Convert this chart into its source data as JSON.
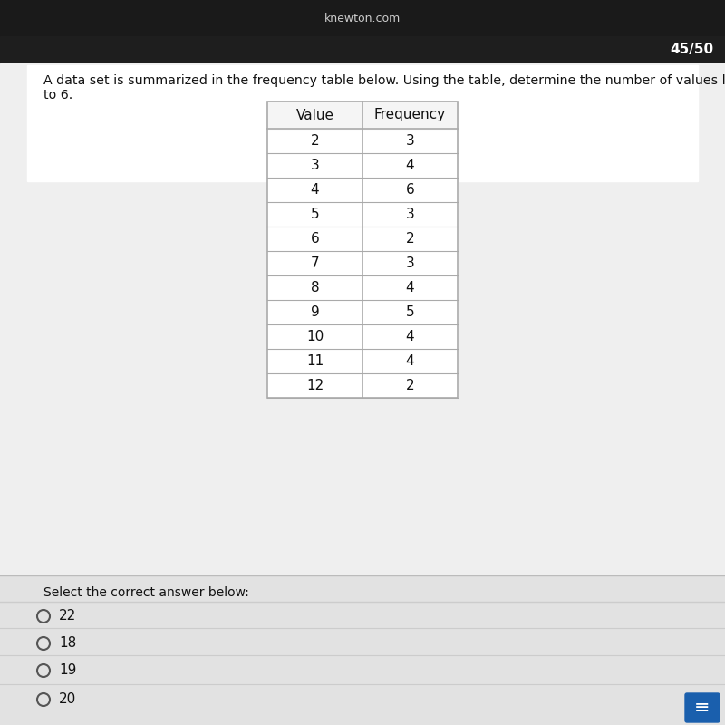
{
  "page_label": "45/50",
  "website": "knewton.com",
  "question_line1": "A data set is summarized in the frequency table below. Using the table, determine the number of values less than or equal",
  "question_line2": "to 6.",
  "table_headers": [
    "Value",
    "Frequency"
  ],
  "table_data": [
    [
      2,
      3
    ],
    [
      3,
      4
    ],
    [
      4,
      6
    ],
    [
      5,
      3
    ],
    [
      6,
      2
    ],
    [
      7,
      3
    ],
    [
      8,
      4
    ],
    [
      9,
      5
    ],
    [
      10,
      4
    ],
    [
      11,
      4
    ],
    [
      12,
      2
    ]
  ],
  "answer_label": "Select the correct answer below:",
  "answers": [
    "22",
    "18",
    "19",
    "20"
  ],
  "bg_outer": "#2a2a2a",
  "bg_top_bar": "#1a1a1a",
  "bg_dark_bar": "#1e1e1e",
  "bg_content": "#efefef",
  "bg_white": "#ffffff",
  "table_bg": "#ffffff",
  "table_border": "#aaaaaa",
  "text_color": "#111111",
  "answer_line_color": "#cccccc",
  "circle_color": "#555555",
  "chat_icon_color": "#1a5fad",
  "website_color": "#cccccc",
  "pagelabel_color": "#ffffff"
}
